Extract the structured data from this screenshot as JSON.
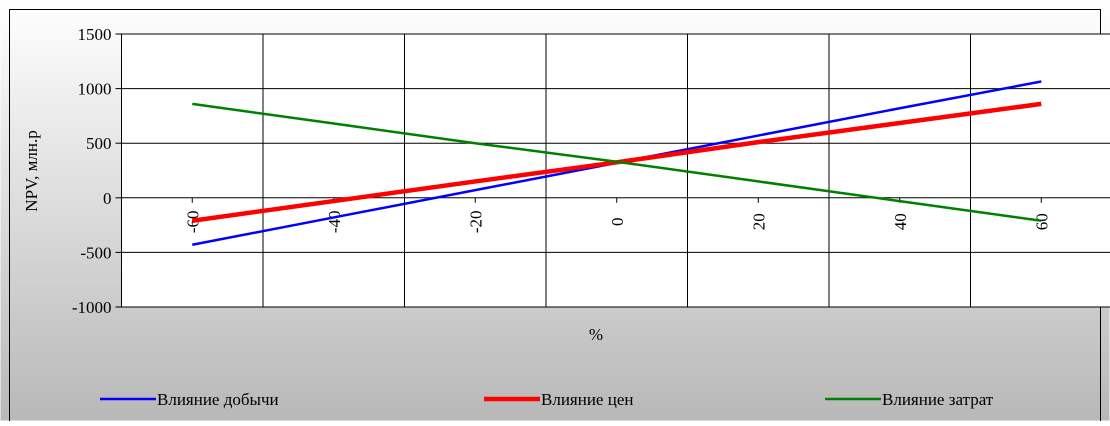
{
  "chart_data": {
    "type": "line",
    "title": "",
    "xlabel": "%",
    "ylabel": "NPV, млн.р",
    "x": [
      -60,
      -40,
      -20,
      0,
      20,
      40,
      60
    ],
    "x_tick_labels": [
      "-60",
      "-40",
      "-20",
      "0",
      "20",
      "40",
      "60"
    ],
    "y_tick_labels": [
      "1500",
      "1000",
      "500",
      "0",
      "-500",
      "-1000"
    ],
    "ylim": [
      -1000,
      1500
    ],
    "grid": true,
    "legend_position": "bottom",
    "series": [
      {
        "name": "Влияние добычи",
        "color": "#0000ff",
        "values": [
          -430,
          -180,
          70,
          320,
          570,
          820,
          1065
        ]
      },
      {
        "name": "Влияние цен",
        "color": "#ff0000",
        "values": [
          -210,
          -30,
          150,
          325,
          510,
          685,
          860
        ]
      },
      {
        "name": "Влияние затрат",
        "color": "#008000",
        "values": [
          860,
          680,
          500,
          330,
          150,
          -30,
          -210
        ]
      }
    ]
  },
  "colors": {
    "plot_background": "#ffffff",
    "gradient_light": "#ffffff",
    "gradient_dark": "#b8b8b8",
    "grid": "#000000",
    "frame": "#000000"
  }
}
